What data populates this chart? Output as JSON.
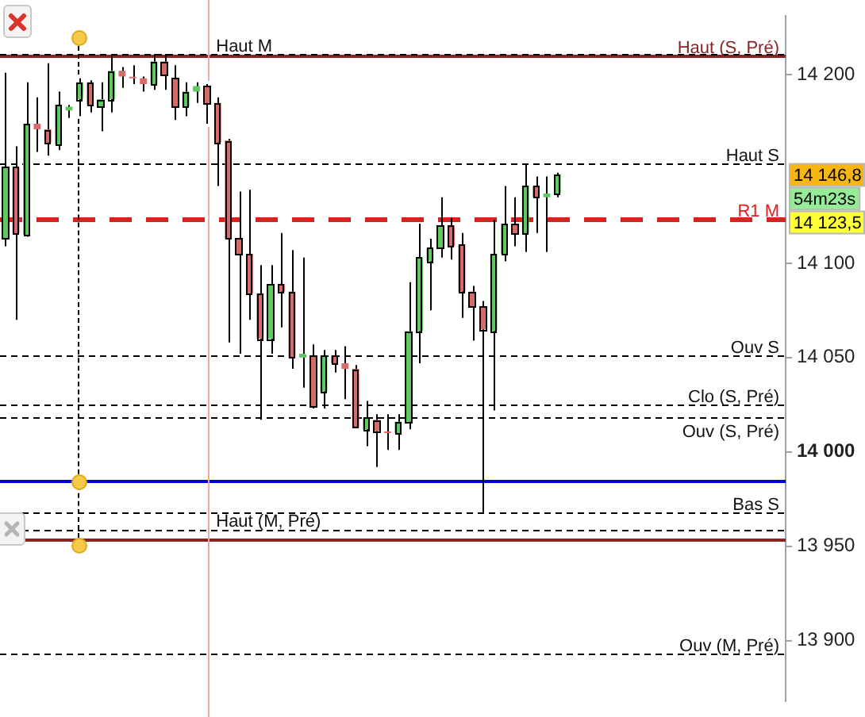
{
  "chart_data": {
    "type": "candlestick",
    "categories": [
      null,
      null,
      null,
      null,
      null,
      null,
      null,
      null,
      null,
      null,
      null,
      null,
      null,
      null,
      null,
      null,
      null,
      null,
      null,
      null,
      null,
      null,
      null,
      null,
      null,
      null,
      null,
      null,
      null,
      null,
      null,
      null,
      null,
      null,
      null,
      null,
      null,
      null,
      null,
      null,
      null,
      null,
      null,
      null,
      null,
      null,
      null,
      null,
      null,
      null,
      null,
      null,
      null,
      null,
      null,
      null,
      null,
      null,
      null,
      null,
      null,
      null,
      null,
      null,
      null,
      null,
      null,
      null,
      null,
      null,
      null,
      null,
      null,
      null
    ],
    "ohlc": [
      [
        14113,
        14201,
        14109,
        14151
      ],
      [
        14151,
        14162,
        14070,
        14116
      ],
      [
        14115,
        14196,
        14114,
        14174
      ],
      [
        14174,
        14188,
        14159,
        14171
      ],
      [
        14171,
        14206,
        14157,
        14164
      ],
      [
        14163,
        14191,
        14160,
        14184
      ],
      [
        14181,
        14184,
        14177,
        14183
      ],
      [
        14187,
        14198,
        14178,
        14196
      ],
      [
        14196,
        14197,
        14180,
        14184
      ],
      [
        14183,
        14196,
        14170,
        14187
      ],
      [
        14187,
        14210,
        14180,
        14202
      ],
      [
        14202,
        14204,
        14193,
        14199
      ],
      [
        14198,
        14205,
        14195,
        14198
      ],
      [
        14198,
        14199,
        14191,
        14195
      ],
      [
        14195,
        14211,
        14192,
        14207
      ],
      [
        14207,
        14211,
        14192,
        14200
      ],
      [
        14198,
        14205,
        14176,
        14183
      ],
      [
        14183,
        14196,
        14178,
        14191
      ],
      [
        14191,
        14196,
        14185,
        14194
      ],
      [
        14194,
        14195,
        14174,
        14185
      ],
      [
        14185,
        14188,
        14141,
        14164
      ],
      [
        14165,
        14166,
        14058,
        14113
      ],
      [
        14113,
        14138,
        14052,
        14105
      ],
      [
        14105,
        14139,
        14070,
        14084
      ],
      [
        14084,
        14099,
        14017,
        14060
      ],
      [
        14060,
        14099,
        14052,
        14089
      ],
      [
        14089,
        14116,
        14066,
        14085
      ],
      [
        14085,
        14107,
        14044,
        14050
      ],
      [
        14050,
        14103,
        14034,
        14052
      ],
      [
        14051,
        14057,
        14023,
        14024
      ],
      [
        14032,
        14054,
        14023,
        14051
      ],
      [
        14051,
        14054,
        14042,
        14047
      ],
      [
        14047,
        14056,
        14028,
        14044
      ],
      [
        14044,
        14046,
        14013,
        14013
      ],
      [
        14012,
        14027,
        14003,
        14018
      ],
      [
        14017,
        14020,
        13992,
        14011
      ],
      [
        14010,
        14020,
        14001,
        14010
      ],
      [
        14010,
        14020,
        14001,
        14016
      ],
      [
        14016,
        14090,
        14012,
        14064
      ],
      [
        14064,
        14121,
        14047,
        14103
      ],
      [
        14101,
        14113,
        14075,
        14108
      ],
      [
        14108,
        14135,
        14103,
        14120
      ],
      [
        14120,
        14124,
        14102,
        14109
      ],
      [
        14110,
        14116,
        14071,
        14085
      ],
      [
        14085,
        14088,
        14059,
        14077
      ],
      [
        14077,
        14080,
        13968,
        14065
      ],
      [
        14064,
        14123,
        14022,
        14105
      ],
      [
        14105,
        14141,
        14101,
        14121
      ],
      [
        14121,
        14135,
        14109,
        14116
      ],
      [
        14116,
        14153,
        14106,
        14141
      ],
      [
        14141,
        14146,
        14116,
        14135
      ],
      [
        14135,
        14146,
        14106,
        14137
      ],
      [
        14137,
        14148,
        14135,
        14146.8
      ],
      null,
      null,
      null,
      null,
      null,
      null,
      null,
      null,
      null,
      null,
      null,
      null,
      null,
      null,
      null,
      null,
      null,
      null,
      null,
      null,
      null
    ],
    "colors": [
      "#5ec95e",
      "#d86a6a",
      "#5ec95e",
      "#d86a6a",
      "#d86a6a",
      "#5ec95e",
      "#5ec95e",
      "#5ec95e",
      "#d86a6a",
      "#5ec95e",
      "#5ec95e",
      "#d86a6a",
      "#d86a6a",
      "#d86a6a",
      "#5ec95e",
      "#d86a6a",
      "#d86a6a",
      "#5ec95e",
      "#5ec95e",
      "#d86a6a",
      "#d86a6a",
      "#d86a6a",
      "#d86a6a",
      "#d86a6a",
      "#d86a6a",
      "#5ec95e",
      "#d86a6a",
      "#d86a6a",
      "#5ec95e",
      "#d86a6a",
      "#5ec95e",
      "#d86a6a",
      "#d86a6a",
      "#d86a6a",
      "#5ec95e",
      "#d86a6a",
      "#d86a6a",
      "#5ec95e",
      "#5ec95e",
      "#5ec95e",
      "#5ec95e",
      "#5ec95e",
      "#d86a6a",
      "#d86a6a",
      "#d86a6a",
      "#d86a6a",
      "#5ec95e",
      "#5ec95e",
      "#d86a6a",
      "#5ec95e",
      "#d86a6a",
      "#5ec95e",
      "#5ec95e",
      null,
      null,
      null,
      null,
      null,
      null,
      null,
      null,
      null,
      null,
      null,
      null,
      null,
      null,
      null,
      null,
      null,
      null,
      null,
      null,
      null
    ],
    "ylim": [
      13868,
      14231
    ],
    "yticks": [
      {
        "value": 13900,
        "label": "13 900"
      },
      {
        "value": 13950,
        "label": "13 950"
      },
      {
        "value": 14000,
        "label": "14 000"
      },
      {
        "value": 14050,
        "label": "14 050"
      },
      {
        "value": 14100,
        "label": "14 100"
      },
      {
        "value": 14200,
        "label": "14 200"
      }
    ],
    "tick_labels": "y",
    "ref_lines": [
      {
        "axis": "y",
        "value": 14210,
        "label": "Haut (S, Pré)",
        "color": "#8b2323",
        "line_style": "solid"
      },
      {
        "axis": "y",
        "value": 14211,
        "label": "Haut M",
        "line_style": "dashed"
      },
      {
        "axis": "y",
        "value": 14153,
        "label": "Haut S",
        "line_style": "dashed"
      },
      {
        "axis": "y",
        "value": 14123.5,
        "label": "R1 M",
        "color": "#e02020",
        "line_style": "dashed"
      },
      {
        "axis": "y",
        "value": 14051,
        "label": "Ouv S",
        "line_style": "dashed"
      },
      {
        "axis": "y",
        "value": 14025,
        "label": "Clo (S, Pré)",
        "line_style": "dashed"
      },
      {
        "axis": "y",
        "value": 14018,
        "label": "Ouv (S, Pré)",
        "line_style": "dashed"
      },
      {
        "axis": "y",
        "value": 13985,
        "color": "#0000dd",
        "line_style": "solid"
      },
      {
        "axis": "y",
        "value": 13968,
        "label": "Bas S",
        "line_style": "dashed"
      },
      {
        "axis": "y",
        "value": 13959,
        "label": "Haut (M, Pré)",
        "line_style": "dashed"
      },
      {
        "axis": "y",
        "value": 13954,
        "color": "#8b2323",
        "line_style": "solid"
      },
      {
        "axis": "y",
        "value": 13893,
        "label": "Ouv (M, Pré)",
        "line_style": "dashed"
      }
    ],
    "annotations": [
      "14 146,8",
      "54m23s",
      "14 123,5"
    ]
  }
}
